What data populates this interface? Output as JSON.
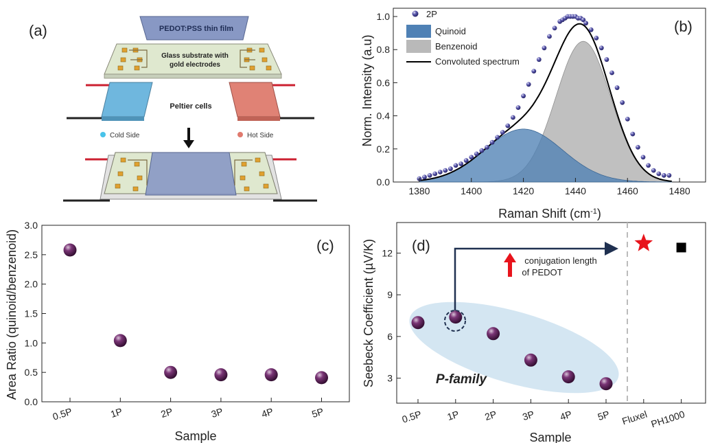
{
  "panel_labels": {
    "a": "(a)",
    "b": "(b)",
    "c": "(c)",
    "d": "(d)"
  },
  "schematic": {
    "film_label": "PEDOT:PSS thin film",
    "substrate_label_1": "Glass substrate with",
    "substrate_label_2": "gold electrodes",
    "peltier_label": "Peltier cells",
    "cold_side": "Cold Side",
    "hot_side": "Hot Side",
    "colors": {
      "cold": "#6fb7de",
      "hot": "#e08275",
      "film": "#8898c4",
      "substrate": "#dfe8cf",
      "gold": "#e0a030"
    }
  },
  "annotations": {
    "conjugation_1": "conjugation length",
    "conjugation_2": "of PEDOT",
    "family": "P-family"
  },
  "chart_data": [
    {
      "id": "b",
      "type": "area",
      "xlabel": "Raman Shift (cm",
      "xlabel_sup": "-1",
      "xlabel_tail": ")",
      "ylabel": "Norm. Intensity (a.u)",
      "xlim": [
        1370,
        1490
      ],
      "ylim": [
        0,
        1.05
      ],
      "xticks": [
        1380,
        1400,
        1420,
        1440,
        1460,
        1480
      ],
      "yticks": [
        0.0,
        0.2,
        0.4,
        0.6,
        0.8,
        1.0
      ],
      "xtick_labels": [
        "1380",
        "1400",
        "1420",
        "1440",
        "1460",
        "1480"
      ],
      "ytick_labels": [
        "0.0",
        "0.2",
        "0.4",
        "0.6",
        "0.8",
        "1.0"
      ],
      "legend": [
        "2P",
        "Quinoid",
        "Benzenoid",
        "Convoluted spectrum"
      ],
      "legend_position": "top-left",
      "series": [
        {
          "name": "Quinoid",
          "kind": "gaussian",
          "center": 1420,
          "amplitude": 0.32,
          "sigma": 15,
          "color": "#4f81b5"
        },
        {
          "name": "Benzenoid",
          "kind": "gaussian",
          "center": 1443,
          "amplitude": 0.85,
          "sigma": 10.5,
          "color": "#b9b9b9"
        },
        {
          "name": "Convoluted spectrum",
          "kind": "sum",
          "color": "#000000"
        },
        {
          "name": "2P",
          "kind": "points",
          "color": "#3c3a8c",
          "x": [
            1380,
            1382,
            1384,
            1386,
            1388,
            1390,
            1392,
            1394,
            1396,
            1398,
            1400,
            1402,
            1404,
            1406,
            1408,
            1410,
            1412,
            1414,
            1416,
            1418,
            1420,
            1422,
            1424,
            1426,
            1428,
            1430,
            1432,
            1434,
            1435,
            1436,
            1437,
            1438,
            1439,
            1440,
            1441,
            1442,
            1443,
            1444,
            1446,
            1448,
            1450,
            1452,
            1454,
            1456,
            1458,
            1460,
            1462,
            1464,
            1466,
            1468,
            1470,
            1472,
            1474,
            1476
          ],
          "y": [
            0.02,
            0.03,
            0.04,
            0.05,
            0.06,
            0.07,
            0.08,
            0.1,
            0.11,
            0.13,
            0.15,
            0.17,
            0.19,
            0.21,
            0.24,
            0.27,
            0.3,
            0.34,
            0.39,
            0.45,
            0.52,
            0.59,
            0.67,
            0.74,
            0.81,
            0.88,
            0.93,
            0.97,
            0.98,
            0.99,
            1.0,
            1.0,
            1.0,
            1.0,
            0.99,
            0.99,
            0.98,
            0.96,
            0.92,
            0.87,
            0.81,
            0.74,
            0.66,
            0.57,
            0.48,
            0.38,
            0.29,
            0.21,
            0.15,
            0.1,
            0.07,
            0.05,
            0.04,
            0.04
          ]
        }
      ]
    },
    {
      "id": "c",
      "type": "scatter",
      "xlabel": "Sample",
      "ylabel": "Area Ratio (quinoid/benzenoid)",
      "categories": [
        "0.5P",
        "1P",
        "2P",
        "3P",
        "4P",
        "5P"
      ],
      "values": [
        2.58,
        1.04,
        0.5,
        0.46,
        0.46,
        0.41
      ],
      "ylim": [
        0,
        3.0
      ],
      "yticks": [
        0.0,
        0.5,
        1.0,
        1.5,
        2.0,
        2.5,
        3.0
      ],
      "ytick_labels": [
        "0.0",
        "0.5",
        "1.0",
        "1.5",
        "2.0",
        "2.5",
        "3.0"
      ],
      "marker_color": "#4a1247"
    },
    {
      "id": "d",
      "type": "scatter",
      "xlabel": "Sample",
      "ylabel": "Seebeck Coefficient (µV/K)",
      "categories": [
        "0.5P",
        "1P",
        "2P",
        "3P",
        "4P",
        "5P",
        "Fluxel",
        "PH1000"
      ],
      "values": [
        7.0,
        7.4,
        6.2,
        4.3,
        3.1,
        2.6,
        12.7,
        12.4
      ],
      "ylim": [
        1.2,
        14.2
      ],
      "yticks": [
        3,
        6,
        9,
        12
      ],
      "ytick_labels": [
        "3",
        "6",
        "9",
        "12"
      ],
      "marker_color": "#4a1247",
      "fluxel_color": "#e8141c",
      "ph1000_color": "#000000"
    }
  ]
}
